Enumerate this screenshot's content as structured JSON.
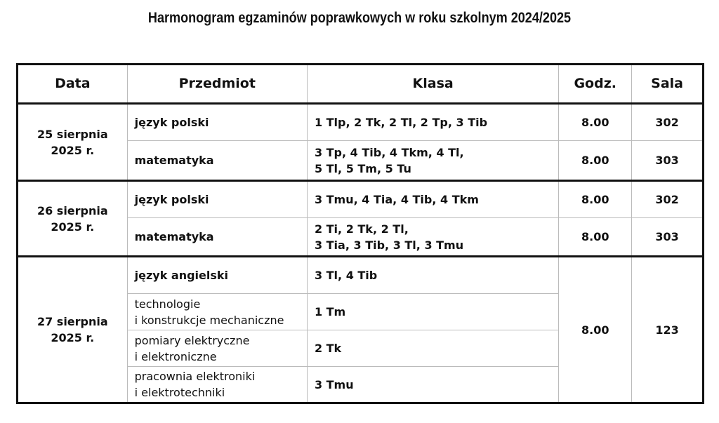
{
  "title": "Harmonogram egzaminów poprawkowych w roku szkolnym 2024/2025",
  "headers": [
    "Data",
    "Przedmiot",
    "Klasa",
    "Godz.",
    "Sala"
  ],
  "days": [
    {
      "date_line1": "25 sierpnia",
      "date_line2": "2025 r.",
      "rows": [
        {
          "subject": "język polski",
          "class_line1": "1 Tlp, 2 Tk, 2 Tl, 2 Tp, 3 Tib",
          "class_line2": "",
          "time": "8.00",
          "room": "302"
        },
        {
          "subject": "matematyka",
          "class_line1": "3 Tp, 4 Tib, 4 Tkm, 4 Tl,",
          "class_line2": "5 Tl, 5 Tm, 5 Tu",
          "time": "8.00",
          "room": "303"
        }
      ]
    },
    {
      "date_line1": "26 sierpnia",
      "date_line2": "2025 r.",
      "rows": [
        {
          "subject": "język polski",
          "class_line1": "3 Tmu, 4 Tia, 4 Tib, 4 Tkm",
          "class_line2": "",
          "time": "8.00",
          "room": "302"
        },
        {
          "subject": "matematyka",
          "class_line1": "2 Ti, 2 Tk, 2 Tl,",
          "class_line2": "3 Tia, 3 Tib, 3 Tl, 3 Tmu",
          "time": "8.00",
          "room": "303"
        }
      ]
    },
    {
      "date_line1": "27 sierpnia",
      "date_line2": "2025 r.",
      "time": "8.00",
      "room": "123",
      "rows": [
        {
          "subject_line1": "język angielski",
          "subject_line2": "",
          "class": "3 Tl, 4 Tib"
        },
        {
          "subject_line1": "technologie",
          "subject_line2": "i konstrukcje mechaniczne",
          "class": "1 Tm"
        },
        {
          "subject_line1": "pomiary elektryczne",
          "subject_line2": "i elektroniczne",
          "class": "2 Tk"
        },
        {
          "subject_line1": "pracownia elektroniki",
          "subject_line2": "i elektrotechniki",
          "class": "3 Tmu"
        }
      ]
    }
  ]
}
